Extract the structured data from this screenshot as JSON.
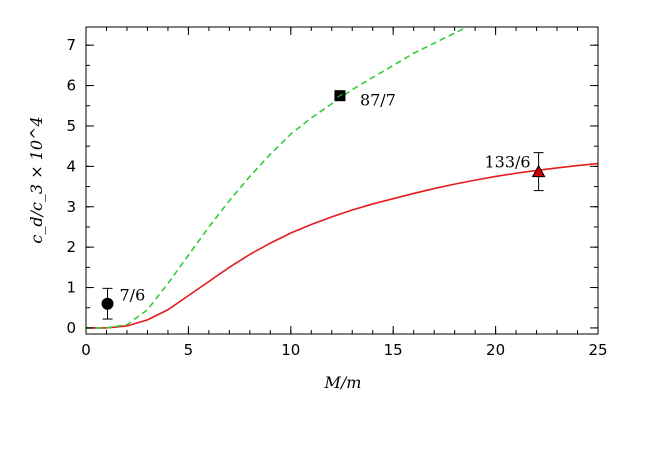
{
  "chart_data": {
    "type": "line",
    "xlabel": "M/m",
    "ylabel": "c_d/c_3 × 10^4",
    "xlim": [
      0,
      25
    ],
    "ylim": [
      -0.15,
      7.45
    ],
    "xticks": [
      0,
      5,
      10,
      15,
      20,
      25
    ],
    "xtick_labels": [
      "0",
      "5",
      "10",
      "15",
      "20",
      "25"
    ],
    "yticks": [
      0,
      1,
      2,
      3,
      4,
      5,
      6,
      7
    ],
    "ytick_labels": [
      "0",
      "1",
      "2",
      "3",
      "4",
      "5",
      "6",
      "7"
    ],
    "grid": false,
    "series": [
      {
        "style": "solid",
        "color": "#e41a1c",
        "x": [
          0,
          1,
          2,
          3,
          4,
          5,
          6,
          7,
          8,
          9,
          10,
          11,
          12,
          13,
          14,
          15,
          16,
          17,
          18,
          19,
          20,
          21,
          22,
          23,
          24,
          25
        ],
        "y": [
          0,
          0,
          0.05,
          0.2,
          0.45,
          0.8,
          1.15,
          1.5,
          1.82,
          2.1,
          2.35,
          2.56,
          2.75,
          2.92,
          3.07,
          3.2,
          3.33,
          3.45,
          3.56,
          3.66,
          3.75,
          3.83,
          3.9,
          3.96,
          4.02,
          4.07
        ]
      },
      {
        "style": "dashed",
        "color": "#33cc33",
        "x": [
          0,
          1,
          2,
          3,
          4,
          5,
          6,
          7,
          8,
          9,
          10,
          11,
          12,
          13,
          14,
          15,
          16,
          17,
          18,
          18.6
        ],
        "y": [
          0,
          0,
          0.08,
          0.45,
          1.1,
          1.8,
          2.5,
          3.15,
          3.75,
          4.3,
          4.8,
          5.2,
          5.55,
          5.9,
          6.2,
          6.5,
          6.8,
          7.05,
          7.3,
          7.45
        ]
      }
    ],
    "points": [
      {
        "label": "7/6",
        "x": 1.05,
        "y": 0.6,
        "err": 0.38,
        "marker": "circle",
        "color": "#000000"
      },
      {
        "label": "87/7",
        "x": 12.4,
        "y": 5.75,
        "err": 0,
        "marker": "square",
        "color": "#000000"
      },
      {
        "label": "133/6",
        "x": 22.1,
        "y": 3.87,
        "err": 0.47,
        "marker": "triangle",
        "color": "#cc0000"
      }
    ]
  }
}
